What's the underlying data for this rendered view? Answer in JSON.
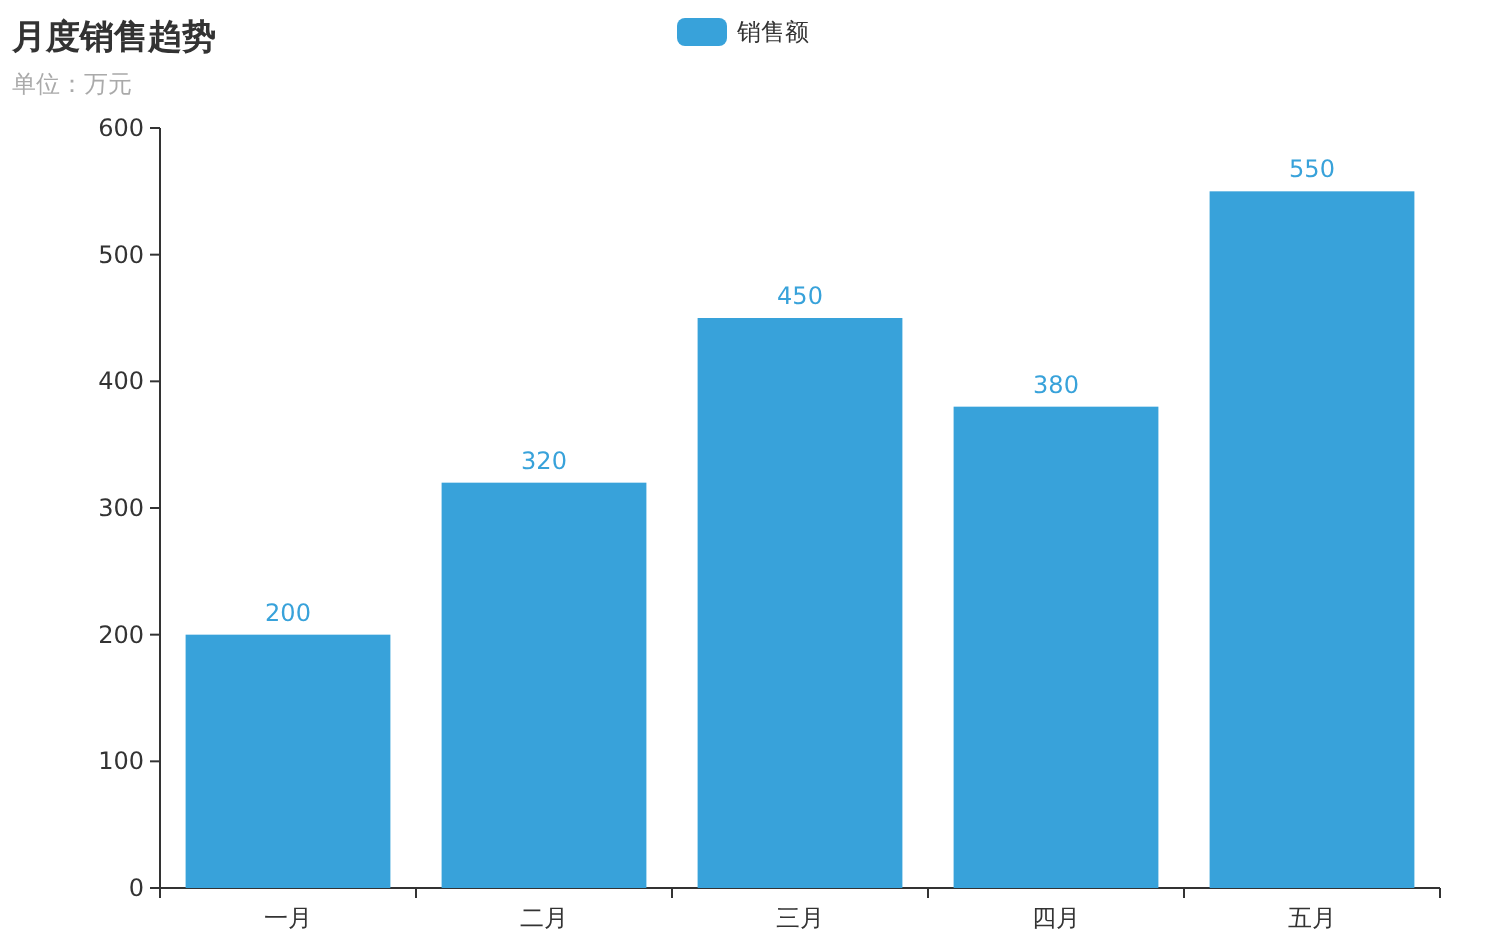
{
  "chart_data": {
    "type": "bar",
    "title": "月度销售趋势",
    "subtitle": "单位：万元",
    "categories": [
      "一月",
      "二月",
      "三月",
      "四月",
      "五月"
    ],
    "series": [
      {
        "name": "销售额",
        "color": "#38a2da",
        "values": [
          200,
          320,
          450,
          380,
          550
        ]
      }
    ],
    "ylim": [
      0,
      600
    ],
    "yticks": [
      0,
      100,
      200,
      300,
      400,
      500,
      600
    ],
    "data_labels": true,
    "legend": "top"
  }
}
